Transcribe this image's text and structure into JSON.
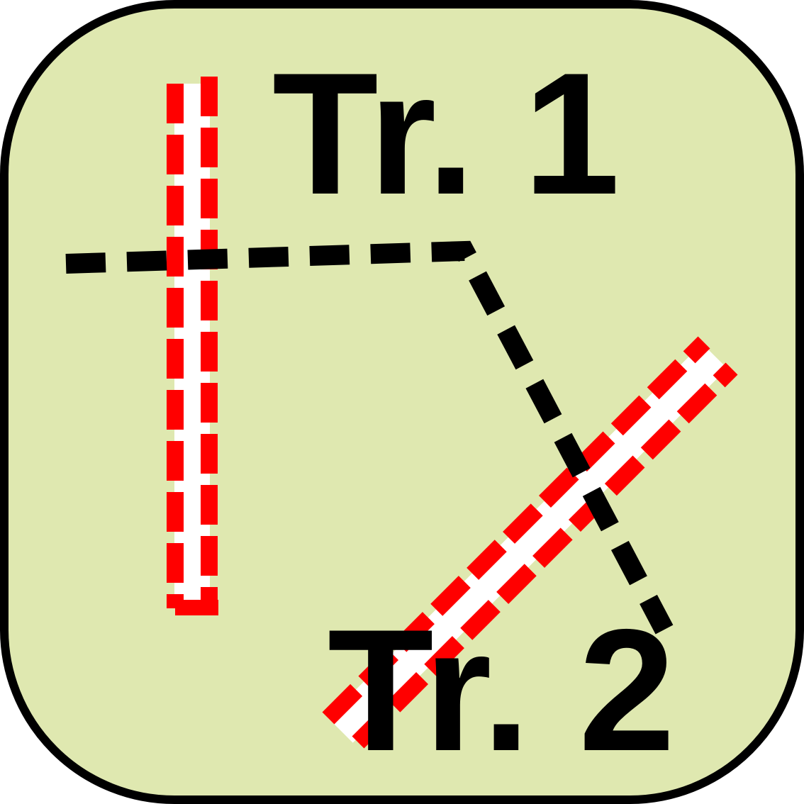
{
  "icon": {
    "name": "track-layout-icon",
    "track_1_label": "Tr. 1",
    "track_2_label": "Tr. 2"
  },
  "colors": {
    "background": "#dfe8b0",
    "border": "#000000",
    "track_core": "#ffffff",
    "track_dash": "#ff0000",
    "path_dash": "#000000",
    "text": "#000000"
  }
}
